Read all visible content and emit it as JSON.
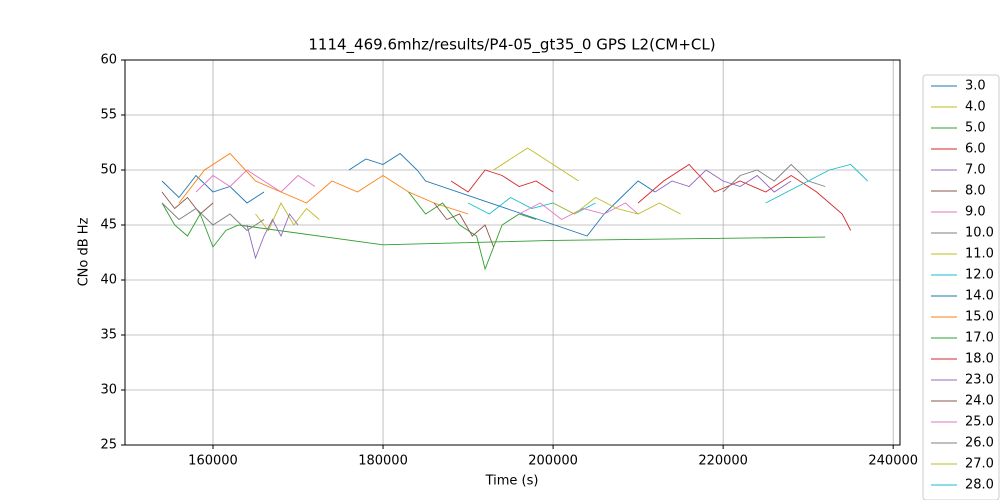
{
  "chart_data": {
    "type": "line",
    "title": "1114_469.6mhz/results/P4-05_gt35_0 GPS L2(CM+CL)",
    "xlabel": "Time (s)",
    "ylabel": "CNo dB Hz",
    "xlim": [
      149650,
      240800
    ],
    "ylim": [
      25,
      60
    ],
    "xticks": [
      160000,
      180000,
      200000,
      220000,
      240000
    ],
    "yticks": [
      25,
      30,
      35,
      40,
      45,
      50,
      55,
      60
    ],
    "grid": true,
    "legend": "right",
    "series": [
      {
        "name": "3.0",
        "color": "#1f77b4",
        "x": [
          154000,
          156000,
          158000,
          160000,
          162000,
          164000,
          166000
        ],
        "values": [
          49,
          47.5,
          49.5,
          48,
          48.5,
          47,
          48
        ]
      },
      {
        "name": "4.0",
        "color": "#bcbd22",
        "x": [
          165000,
          166500,
          168000,
          169500,
          171000,
          172500
        ],
        "values": [
          46,
          44.5,
          47,
          45,
          46.5,
          45.5
        ]
      },
      {
        "name": "5.0",
        "color": "#2ca02c",
        "x": [
          154000,
          155500,
          157000,
          158500,
          160000,
          161500,
          163000,
          180000,
          200000,
          232000
        ],
        "values": [
          47,
          45,
          44,
          46,
          43,
          44.5,
          45,
          43.2,
          43.6,
          43.9
        ]
      },
      {
        "name": "6.0",
        "color": "#d62728",
        "x": [
          188000,
          190000,
          192000,
          194000,
          196000,
          198000,
          200000
        ],
        "values": [
          49,
          48,
          50,
          49.5,
          48.5,
          49,
          48
        ]
      },
      {
        "name": "7.0",
        "color": "#9467bd",
        "x": [
          164000,
          165000,
          166000,
          167000,
          168000,
          169000,
          170000
        ],
        "values": [
          45,
          42,
          44,
          45.5,
          44,
          46,
          45
        ]
      },
      {
        "name": "8.0",
        "color": "#8c564b",
        "x": [
          154000,
          155500,
          157000,
          158500,
          160000
        ],
        "values": [
          48,
          46.5,
          47.5,
          46,
          47
        ]
      },
      {
        "name": "9.0",
        "color": "#e377c2",
        "x": [
          158000,
          160000,
          162000,
          164000,
          166000,
          168000,
          170000,
          172000
        ],
        "values": [
          48,
          49.5,
          48.5,
          50,
          49,
          48,
          49.5,
          48.5
        ]
      },
      {
        "name": "10.0",
        "color": "#7f7f7f",
        "x": [
          154000,
          156000,
          158000,
          160000,
          162000,
          164000,
          166000
        ],
        "values": [
          47,
          45.5,
          46.5,
          45,
          46,
          44.5,
          45.5
        ]
      },
      {
        "name": "11.0",
        "color": "#bcbd22",
        "x": [
          193000,
          195000,
          197000,
          199000,
          201000,
          203000
        ],
        "values": [
          50,
          51,
          52,
          51,
          50,
          49
        ]
      },
      {
        "name": "12.0",
        "color": "#17becf",
        "x": [
          190000,
          192500,
          195000,
          197500,
          200000,
          202500,
          205000
        ],
        "values": [
          47,
          46,
          47.5,
          46.5,
          47,
          46,
          47
        ]
      },
      {
        "name": "14.0",
        "color": "#1f77b4",
        "x": [
          176000,
          178000,
          180000,
          182000,
          184000,
          185000,
          204000,
          206000,
          208000,
          210000,
          212000
        ],
        "values": [
          50,
          51,
          50.5,
          51.5,
          50,
          49,
          44,
          46,
          47.5,
          49,
          48
        ]
      },
      {
        "name": "15.0",
        "color": "#ff7f0e",
        "x": [
          156000,
          159000,
          162000,
          165000,
          168000,
          171000,
          174000,
          177000,
          180000,
          183000,
          186000,
          190000
        ],
        "values": [
          47,
          50,
          51.5,
          49,
          48,
          47,
          49,
          48,
          49.5,
          48,
          47,
          46
        ]
      },
      {
        "name": "17.0",
        "color": "#2ca02c",
        "x": [
          183000,
          185000,
          187000,
          189000,
          191000,
          192000,
          194000,
          196000,
          198000
        ],
        "values": [
          48,
          46,
          47,
          45,
          44,
          41,
          45,
          46,
          45.5
        ]
      },
      {
        "name": "18.0",
        "color": "#d62728",
        "x": [
          210000,
          213000,
          216000,
          219000,
          222000,
          225000,
          228000,
          231000,
          234000,
          235000
        ],
        "values": [
          47,
          49,
          50.5,
          48,
          49,
          48,
          49.5,
          48,
          46,
          44.5
        ]
      },
      {
        "name": "23.0",
        "color": "#9467bd",
        "x": [
          212000,
          214000,
          216000,
          218000,
          220000,
          222000,
          224000,
          226000,
          228000
        ],
        "values": [
          48,
          49,
          48.5,
          50,
          49,
          48.5,
          49.5,
          48,
          49
        ]
      },
      {
        "name": "24.0",
        "color": "#8c564b",
        "x": [
          186000,
          187500,
          189000,
          190500,
          192000,
          193000
        ],
        "values": [
          47,
          45.5,
          46,
          44,
          45,
          43
        ]
      },
      {
        "name": "25.0",
        "color": "#e377c2",
        "x": [
          196000,
          198500,
          201000,
          203500,
          206000,
          208500,
          210000
        ],
        "values": [
          46,
          47,
          45.5,
          46.5,
          46,
          47,
          46
        ]
      },
      {
        "name": "26.0",
        "color": "#7f7f7f",
        "x": [
          220000,
          222000,
          224000,
          226000,
          228000,
          230000,
          232000
        ],
        "values": [
          48,
          49.5,
          50,
          49,
          50.5,
          49,
          48.5
        ]
      },
      {
        "name": "27.0",
        "color": "#bcbd22",
        "x": [
          200000,
          202500,
          205000,
          207500,
          210000,
          212500,
          215000
        ],
        "values": [
          47,
          46,
          47.5,
          46.5,
          46,
          47,
          46
        ]
      },
      {
        "name": "28.0",
        "color": "#17becf",
        "x": [
          225000,
          227500,
          230000,
          232500,
          235000,
          237000
        ],
        "values": [
          47,
          48,
          49,
          50,
          50.5,
          49
        ]
      }
    ]
  }
}
